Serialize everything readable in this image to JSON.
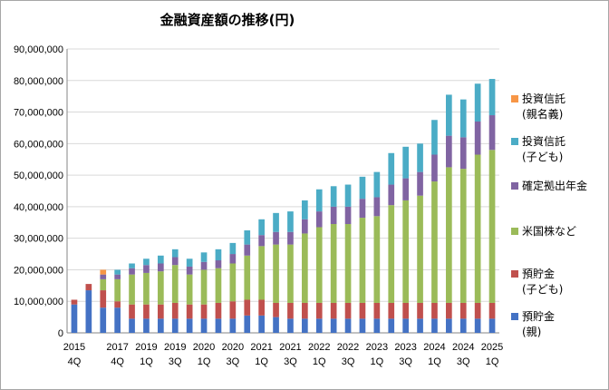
{
  "chart_data": {
    "type": "bar",
    "stacked": true,
    "title": "金融資産額の推移(円)",
    "ylim": [
      0,
      90000000
    ],
    "yticks": [
      "0",
      "10,000,000",
      "20,000,000",
      "30,000,000",
      "40,000,000",
      "50,000,000",
      "60,000,000",
      "70,000,000",
      "80,000,000",
      "90,000,000"
    ],
    "ytick_values": [
      0,
      10000000,
      20000000,
      30000000,
      40000000,
      50000000,
      60000000,
      70000000,
      80000000,
      90000000
    ],
    "xlabels": [
      {
        "year": "2015",
        "q": "4Q",
        "index": 0
      },
      {
        "year": "2017",
        "q": "4Q",
        "index": 3
      },
      {
        "year": "2019",
        "q": "1Q",
        "index": 5
      },
      {
        "year": "2019",
        "q": "3Q",
        "index": 7
      },
      {
        "year": "2020",
        "q": "1Q",
        "index": 9
      },
      {
        "year": "2020",
        "q": "3Q",
        "index": 11
      },
      {
        "year": "2021",
        "q": "1Q",
        "index": 13
      },
      {
        "year": "2021",
        "q": "3Q",
        "index": 15
      },
      {
        "year": "2022",
        "q": "1Q",
        "index": 17
      },
      {
        "year": "2022",
        "q": "3Q",
        "index": 19
      },
      {
        "year": "2023",
        "q": "1Q",
        "index": 21
      },
      {
        "year": "2023",
        "q": "3Q",
        "index": 23
      },
      {
        "year": "2024",
        "q": "1Q",
        "index": 25
      },
      {
        "year": "2024",
        "q": "3Q",
        "index": 27
      },
      {
        "year": "2025",
        "q": "1Q",
        "index": 29
      }
    ],
    "series": [
      {
        "name": "預貯金(親)",
        "label_lines": [
          "預貯金",
          "(親)"
        ],
        "color": "#4472C4",
        "values": [
          9000000,
          13500000,
          8000000,
          8000000,
          4500000,
          4500000,
          4500000,
          4500000,
          4500000,
          4500000,
          4500000,
          4500000,
          5500000,
          5500000,
          5000000,
          4500000,
          4500000,
          4500000,
          4500000,
          4500000,
          4500000,
          4500000,
          4500000,
          4500000,
          4500000,
          4500000,
          4500000,
          4500000,
          4500000,
          4500000
        ]
      },
      {
        "name": "預貯金(子ども)",
        "label_lines": [
          "預貯金",
          "(子ども)"
        ],
        "color": "#C0504D",
        "values": [
          1500000,
          2000000,
          5500000,
          2000000,
          4500000,
          4500000,
          4500000,
          5000000,
          4500000,
          4500000,
          5000000,
          5500000,
          5000000,
          5000000,
          4500000,
          5000000,
          5000000,
          5000000,
          5000000,
          5000000,
          5000000,
          5000000,
          5000000,
          5000000,
          5000000,
          5000000,
          5000000,
          5000000,
          5000000,
          5000000
        ]
      },
      {
        "name": "米国株など",
        "label_lines": [
          "米国株など"
        ],
        "color": "#9BBB59",
        "values": [
          0,
          0,
          3500000,
          7000000,
          9500000,
          10000000,
          10500000,
          12000000,
          9500000,
          11000000,
          11000000,
          12000000,
          14000000,
          17000000,
          18500000,
          18500000,
          22000000,
          24000000,
          25000000,
          25000000,
          27000000,
          27500000,
          31000000,
          32500000,
          34000000,
          38500000,
          43000000,
          42500000,
          47000000,
          48500000
        ]
      },
      {
        "name": "確定拠出年金",
        "label_lines": [
          "確定拠出年金"
        ],
        "color": "#8064A2",
        "values": [
          0,
          0,
          1500000,
          1500000,
          2000000,
          2500000,
          2500000,
          2500000,
          2500000,
          2500000,
          2500000,
          3000000,
          3500000,
          3500000,
          4000000,
          4000000,
          4500000,
          5000000,
          5500000,
          5500000,
          6000000,
          6000000,
          6500000,
          7000000,
          7500000,
          8500000,
          10000000,
          10000000,
          10500000,
          11000000
        ]
      },
      {
        "name": "投資信託(子ども)",
        "label_lines": [
          "投資信託",
          "(子ども)"
        ],
        "color": "#4BACC6",
        "values": [
          0,
          0,
          0,
          1500000,
          1500000,
          2000000,
          2500000,
          2500000,
          2500000,
          3000000,
          3500000,
          3500000,
          4500000,
          5000000,
          6000000,
          6500000,
          6000000,
          7000000,
          6500000,
          7000000,
          7000000,
          8000000,
          10000000,
          10000000,
          9000000,
          11000000,
          13000000,
          12000000,
          12000000,
          11500000
        ]
      },
      {
        "name": "投資信託(親名義)",
        "label_lines": [
          "投資信託",
          "(親名義)"
        ],
        "color": "#F79646",
        "values": [
          0,
          0,
          1500000,
          0,
          0,
          0,
          0,
          0,
          0,
          0,
          0,
          0,
          0,
          0,
          0,
          0,
          0,
          0,
          0,
          0,
          0,
          0,
          0,
          0,
          0,
          0,
          0,
          0,
          0,
          0
        ]
      }
    ],
    "legend_order": [
      5,
      4,
      3,
      2,
      1,
      0
    ],
    "legend_position": "right"
  }
}
